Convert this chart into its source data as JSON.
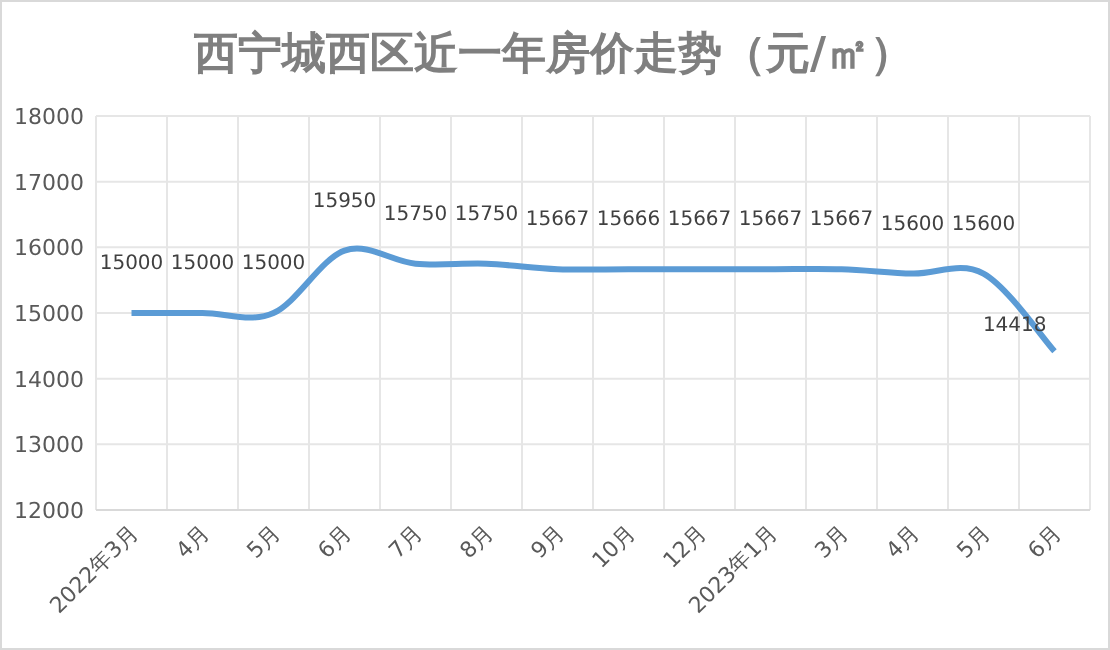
{
  "chart_data": {
    "type": "line",
    "title": "西宁城西区近一年房价走势（元/㎡）",
    "categories": [
      "2022年3月",
      "4月",
      "5月",
      "6月",
      "7月",
      "8月",
      "9月",
      "10月",
      "12月",
      "2023年1月",
      "3月",
      "4月",
      "5月",
      "6月"
    ],
    "series": [
      {
        "color": "#5b9bd5",
        "values": [
          15000,
          15000,
          15000,
          15950,
          15750,
          15750,
          15667,
          15666,
          15667,
          15667,
          15667,
          15600,
          15600,
          14418
        ]
      }
    ],
    "ylim": [
      12000,
      18000
    ],
    "yticks": [
      12000,
      13000,
      14000,
      15000,
      16000,
      17000,
      18000
    ],
    "grid": true,
    "data_labels": true,
    "marker": "none",
    "line_style": "solid"
  }
}
